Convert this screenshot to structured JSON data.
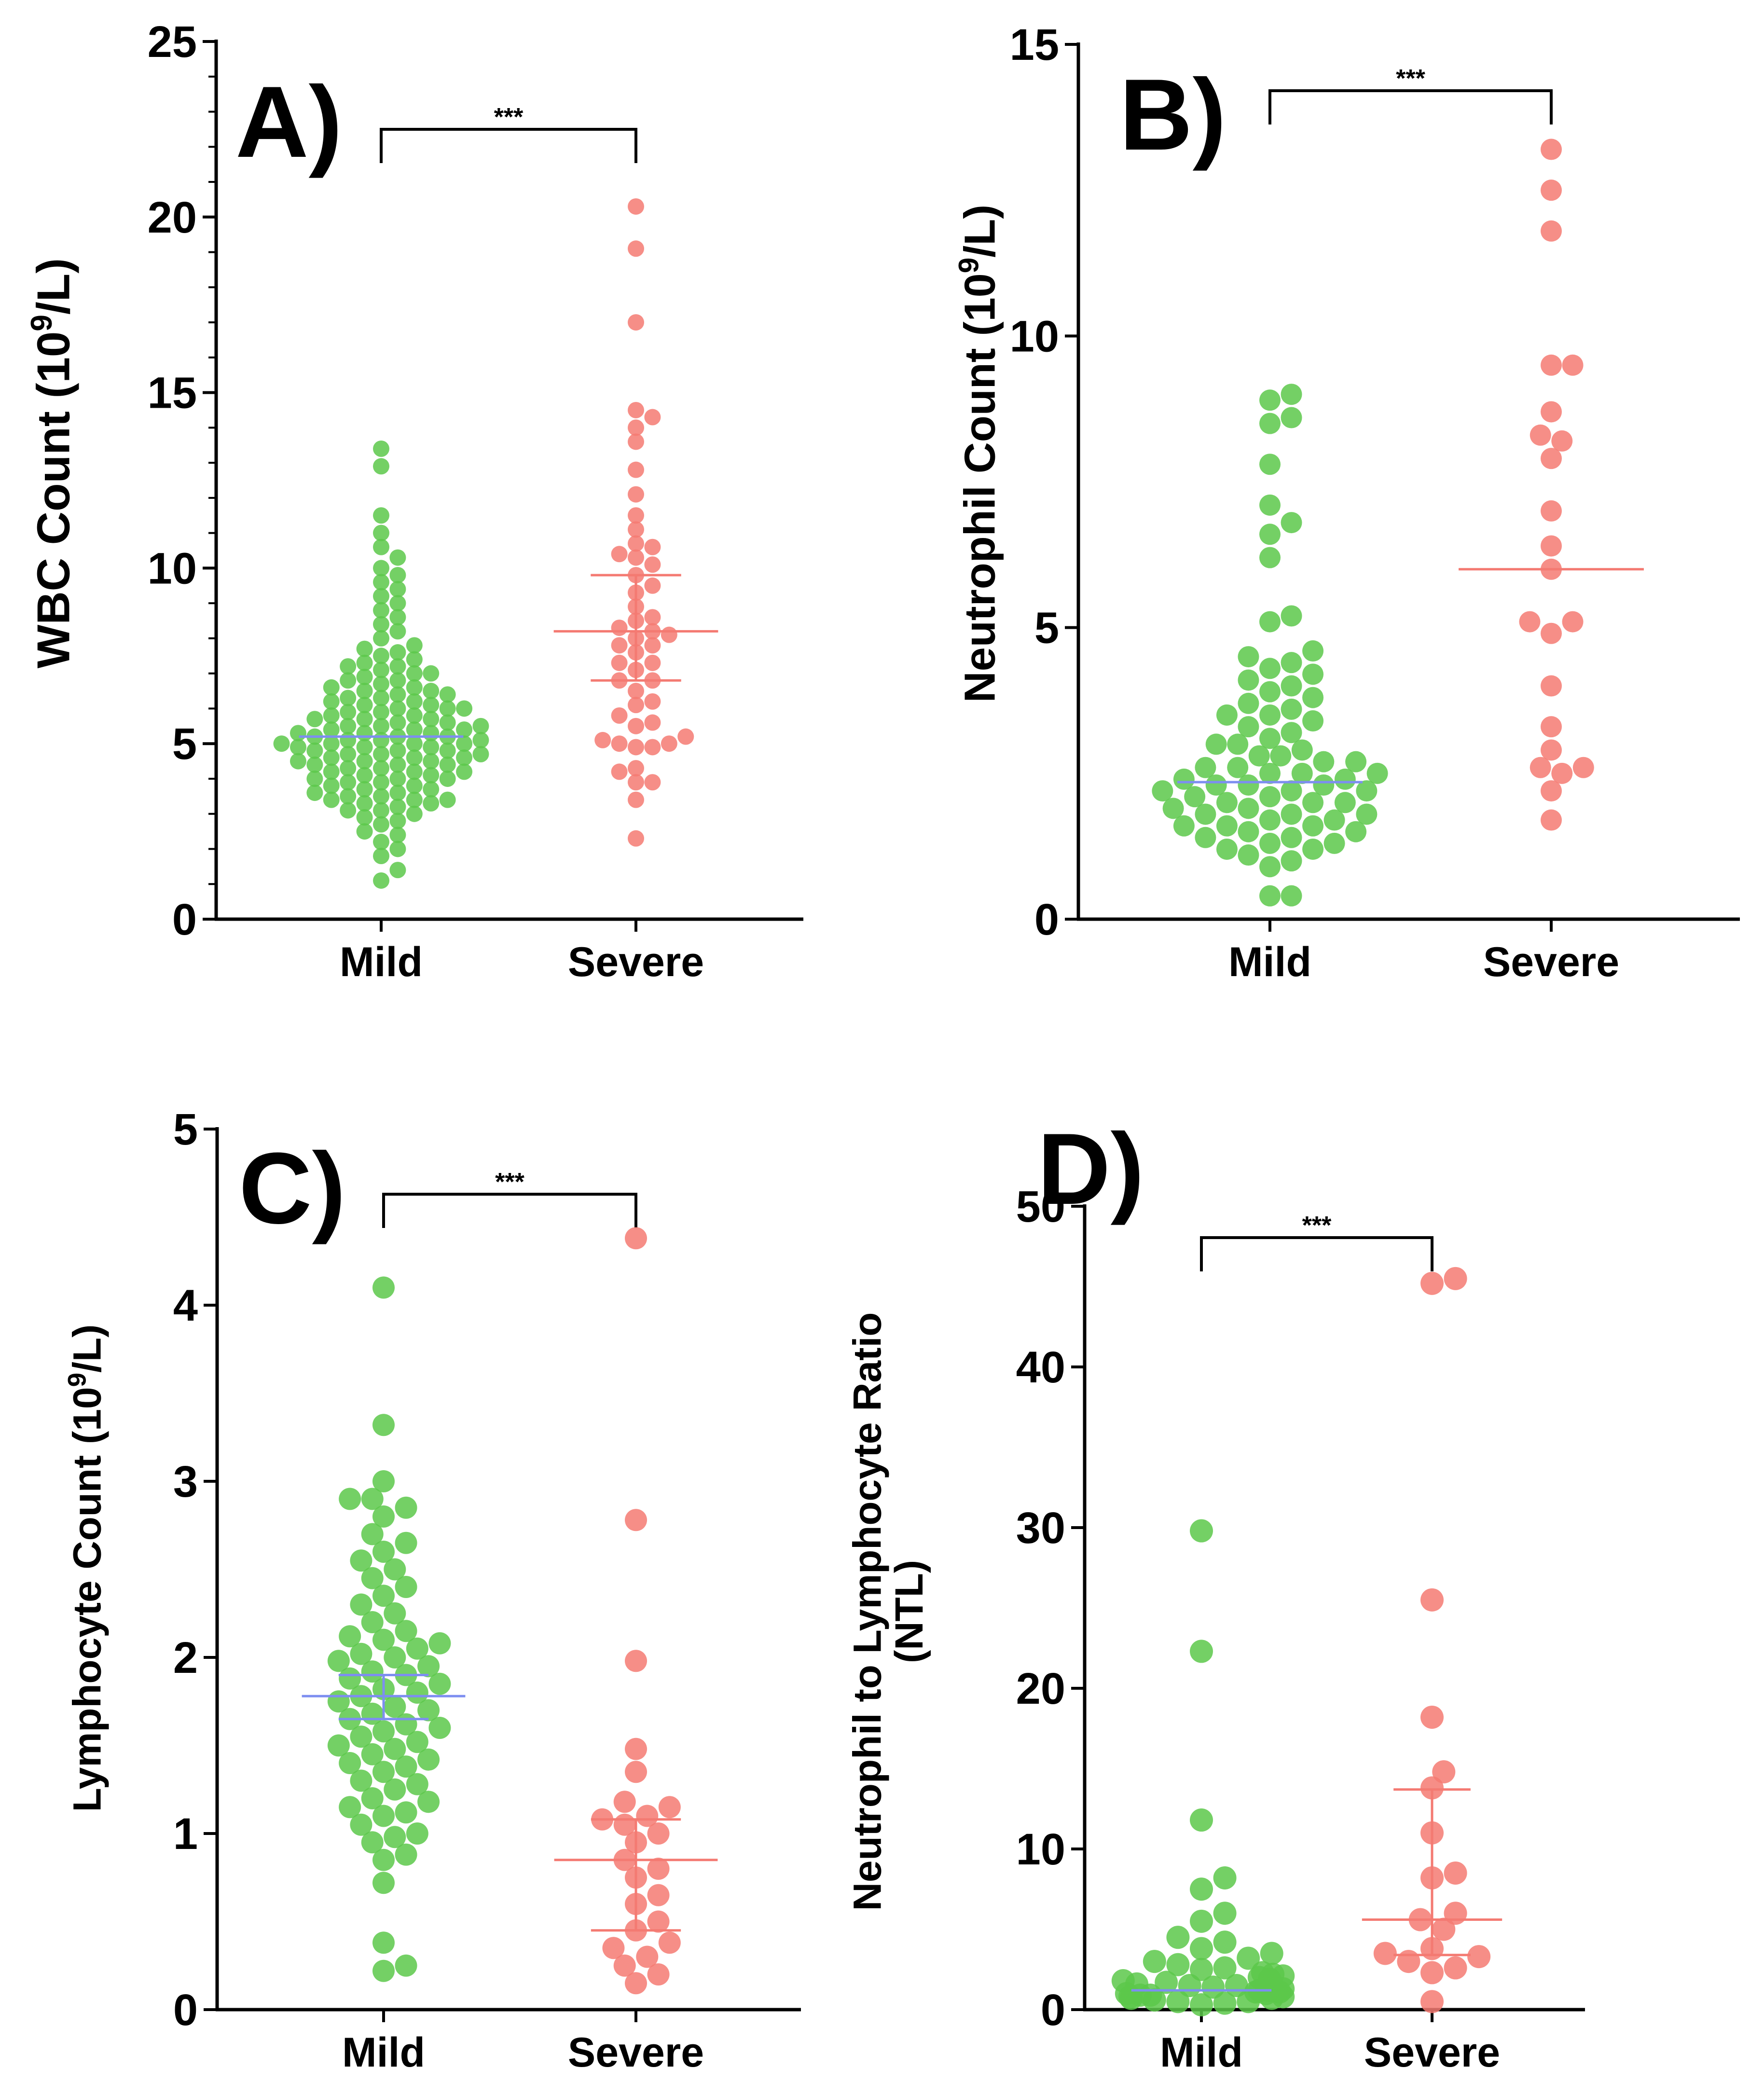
{
  "colors": {
    "mild": "#5cc84a",
    "severe": "#f47a72",
    "mild_line": "#7d8ef0",
    "severe_line": "#f47a72"
  },
  "chart_data": [
    {
      "type": "scatter",
      "panel_label": "A)",
      "ylabel": "WBC Count (10⁹/L)",
      "ylabel_lines": [
        "WBC Count (10⁹/L)"
      ],
      "ylim": [
        0,
        25
      ],
      "yticks": [
        0,
        5,
        10,
        15,
        20,
        25
      ],
      "minor_ticks": true,
      "categories": [
        "Mild",
        "Severe"
      ],
      "significance": "***",
      "series": [
        {
          "name": "Mild",
          "median": 5.2,
          "q1": null,
          "q3": null,
          "values": [
            1.1,
            1.4,
            1.8,
            2.0,
            2.2,
            2.4,
            2.5,
            2.7,
            2.8,
            2.9,
            3.0,
            3.1,
            3.1,
            3.2,
            3.3,
            3.3,
            3.4,
            3.4,
            3.4,
            3.5,
            3.5,
            3.6,
            3.6,
            3.7,
            3.7,
            3.8,
            3.8,
            3.9,
            3.9,
            4.0,
            4.0,
            4.0,
            4.1,
            4.1,
            4.2,
            4.2,
            4.2,
            4.3,
            4.3,
            4.4,
            4.4,
            4.4,
            4.5,
            4.5,
            4.5,
            4.6,
            4.6,
            4.6,
            4.7,
            4.7,
            4.7,
            4.8,
            4.8,
            4.8,
            4.9,
            4.9,
            4.9,
            5.0,
            5.0,
            5.0,
            5.0,
            5.1,
            5.1,
            5.1,
            5.2,
            5.2,
            5.2,
            5.3,
            5.3,
            5.3,
            5.4,
            5.4,
            5.4,
            5.5,
            5.5,
            5.5,
            5.6,
            5.6,
            5.7,
            5.7,
            5.7,
            5.8,
            5.8,
            5.9,
            5.9,
            6.0,
            6.0,
            6.0,
            6.1,
            6.1,
            6.2,
            6.2,
            6.3,
            6.3,
            6.4,
            6.4,
            6.5,
            6.5,
            6.6,
            6.6,
            6.7,
            6.8,
            6.8,
            6.9,
            7.0,
            7.0,
            7.1,
            7.2,
            7.2,
            7.3,
            7.4,
            7.5,
            7.6,
            7.7,
            7.8,
            8.0,
            8.2,
            8.4,
            8.6,
            8.8,
            9.0,
            9.2,
            9.4,
            9.6,
            9.8,
            10.0,
            10.3,
            10.6,
            11.0,
            11.5,
            12.9,
            13.4
          ]
        },
        {
          "name": "Severe",
          "median": 8.2,
          "q1": 6.8,
          "q3": 9.8,
          "values": [
            2.3,
            3.4,
            3.9,
            3.9,
            4.2,
            4.3,
            4.9,
            4.9,
            5.0,
            5.0,
            5.1,
            5.2,
            5.5,
            5.6,
            5.8,
            6.1,
            6.2,
            6.5,
            6.8,
            6.8,
            7.1,
            7.3,
            7.3,
            7.6,
            7.8,
            7.8,
            8.0,
            8.1,
            8.2,
            8.3,
            8.5,
            8.6,
            8.9,
            9.3,
            9.5,
            9.8,
            10.1,
            10.3,
            10.4,
            10.6,
            10.7,
            11.1,
            11.5,
            12.1,
            12.8,
            13.6,
            14.0,
            14.3,
            14.5,
            17.0,
            19.1,
            20.3
          ]
        }
      ]
    },
    {
      "type": "scatter",
      "panel_label": "B)",
      "ylabel": "Neutrophil Count (10⁹/L)",
      "ylabel_lines": [
        "Neutrophil Count (10⁹/L)"
      ],
      "ylim": [
        0,
        15
      ],
      "yticks": [
        0,
        5,
        10,
        15
      ],
      "minor_ticks": false,
      "categories": [
        "Mild",
        "Severe"
      ],
      "significance": "***",
      "series": [
        {
          "name": "Mild",
          "median": 2.35,
          "q1": null,
          "q3": null,
          "values": [
            0.4,
            0.4,
            0.9,
            1.0,
            1.1,
            1.2,
            1.2,
            1.3,
            1.3,
            1.4,
            1.4,
            1.5,
            1.5,
            1.6,
            1.6,
            1.6,
            1.7,
            1.7,
            1.8,
            1.8,
            1.8,
            1.9,
            1.9,
            2.0,
            2.0,
            2.0,
            2.1,
            2.1,
            2.2,
            2.2,
            2.2,
            2.3,
            2.3,
            2.3,
            2.4,
            2.4,
            2.5,
            2.5,
            2.5,
            2.6,
            2.6,
            2.7,
            2.7,
            2.8,
            2.8,
            2.9,
            3.0,
            3.0,
            3.1,
            3.2,
            3.3,
            3.4,
            3.5,
            3.5,
            3.6,
            3.7,
            3.8,
            3.9,
            4.0,
            4.1,
            4.2,
            4.3,
            4.4,
            4.5,
            4.6,
            5.1,
            5.2,
            6.2,
            6.6,
            6.8,
            7.1,
            7.8,
            8.5,
            8.6,
            8.9,
            9.0
          ]
        },
        {
          "name": "Severe",
          "median": 6.0,
          "q1": null,
          "q3": null,
          "values": [
            1.7,
            2.2,
            2.5,
            2.6,
            2.6,
            2.9,
            3.3,
            4.0,
            4.9,
            5.1,
            5.1,
            6.0,
            6.4,
            7.0,
            7.9,
            8.2,
            8.3,
            8.7,
            9.5,
            9.5,
            11.8,
            12.5,
            13.2
          ]
        }
      ]
    },
    {
      "type": "scatter",
      "panel_label": "C)",
      "ylabel": "Lymphocyte Count (10⁹/L)",
      "ylabel_lines": [
        "Lymphocyte Count (10⁹/L)"
      ],
      "ylim": [
        0,
        5
      ],
      "yticks": [
        0,
        1,
        2,
        3,
        4,
        5
      ],
      "minor_ticks": false,
      "categories": [
        "Mild",
        "Severe"
      ],
      "significance": "***",
      "series": [
        {
          "name": "Mild",
          "median": 1.78,
          "q1": 1.65,
          "q3": 1.9,
          "values": [
            0.22,
            0.25,
            0.38,
            0.72,
            0.85,
            0.88,
            0.95,
            0.98,
            1.0,
            1.05,
            1.1,
            1.12,
            1.15,
            1.18,
            1.2,
            1.25,
            1.28,
            1.3,
            1.35,
            1.38,
            1.4,
            1.42,
            1.45,
            1.48,
            1.5,
            1.52,
            1.55,
            1.58,
            1.6,
            1.62,
            1.65,
            1.68,
            1.7,
            1.72,
            1.75,
            1.78,
            1.8,
            1.82,
            1.85,
            1.88,
            1.9,
            1.92,
            1.95,
            1.98,
            2.0,
            2.02,
            2.05,
            2.08,
            2.1,
            2.12,
            2.15,
            2.2,
            2.25,
            2.3,
            2.35,
            2.4,
            2.45,
            2.5,
            2.55,
            2.6,
            2.65,
            2.7,
            2.8,
            2.85,
            2.9,
            2.9,
            3.0,
            3.32,
            4.1
          ]
        },
        {
          "name": "Severe",
          "median": 0.85,
          "q1": 0.45,
          "q3": 1.08,
          "values": [
            0.15,
            0.2,
            0.25,
            0.3,
            0.35,
            0.38,
            0.45,
            0.5,
            0.6,
            0.65,
            0.75,
            0.8,
            0.85,
            0.95,
            1.0,
            1.05,
            1.08,
            1.1,
            1.15,
            1.18,
            1.35,
            1.48,
            1.98,
            2.78,
            4.38
          ]
        }
      ]
    },
    {
      "type": "scatter",
      "panel_label": "D)",
      "ylabel": "Neutrophil to Lymphocyte Ratio (NTL)",
      "ylabel_lines": [
        "Neutrophil to Lymphocyte Ratio",
        "(NTL)"
      ],
      "ylim": [
        0,
        50
      ],
      "yticks": [
        0,
        10,
        20,
        30,
        40,
        50
      ],
      "minor_ticks": false,
      "categories": [
        "Mild",
        "Severe"
      ],
      "significance": "***",
      "series": [
        {
          "name": "Mild",
          "median": 1.2,
          "q1": null,
          "q3": null,
          "values": [
            0.3,
            0.4,
            0.5,
            0.5,
            0.6,
            0.7,
            0.7,
            0.8,
            0.8,
            0.9,
            0.9,
            1.0,
            1.0,
            1.1,
            1.1,
            1.2,
            1.2,
            1.3,
            1.3,
            1.4,
            1.5,
            1.5,
            1.6,
            1.7,
            1.8,
            1.9,
            2.0,
            2.1,
            2.2,
            2.3,
            2.5,
            2.6,
            2.8,
            3.0,
            3.2,
            3.5,
            3.8,
            4.2,
            4.5,
            5.5,
            6.0,
            7.5,
            8.2,
            11.8,
            22.3,
            29.8
          ]
        },
        {
          "name": "Severe",
          "median": 5.6,
          "q1": 3.4,
          "q3": 13.7,
          "values": [
            0.5,
            2.3,
            2.6,
            3.0,
            3.3,
            3.5,
            3.8,
            5.0,
            5.6,
            6.0,
            8.2,
            8.5,
            11.0,
            13.8,
            14.8,
            18.2,
            25.5,
            45.2,
            45.5
          ]
        }
      ]
    }
  ]
}
